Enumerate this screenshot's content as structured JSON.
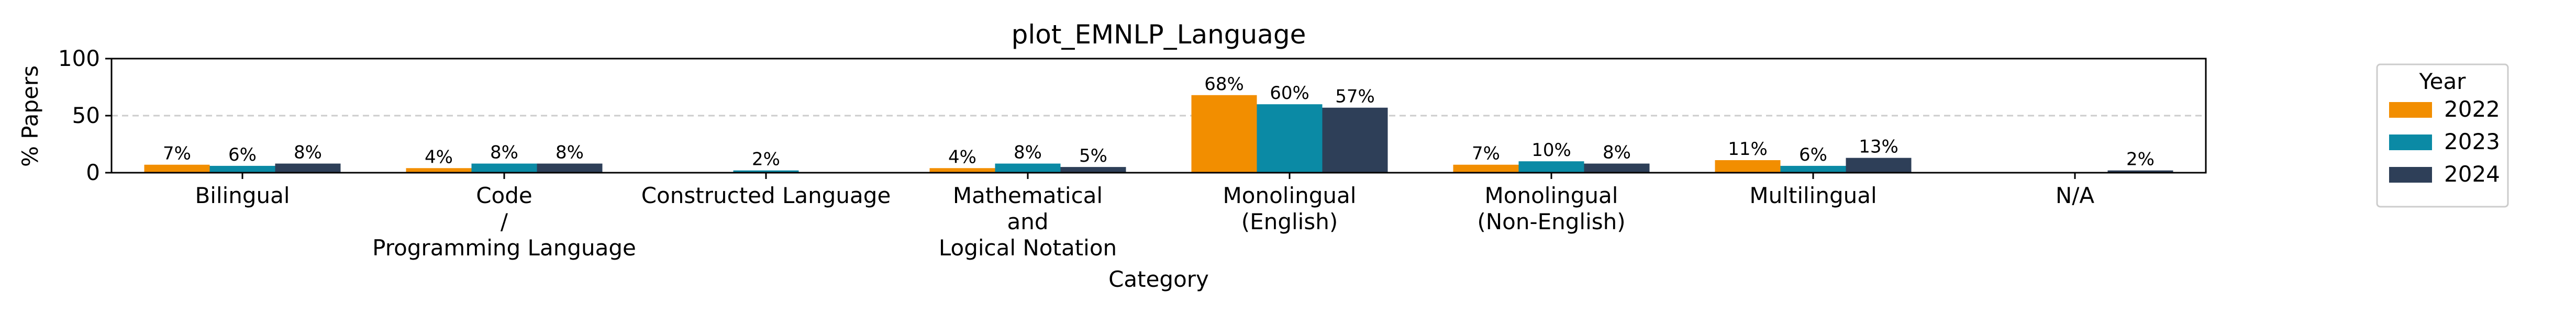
{
  "chart_data": {
    "type": "bar",
    "title": "plot_EMNLP_Language",
    "xlabel": "Category",
    "ylabel": "% Papers",
    "ylim": [
      0,
      100
    ],
    "yticks": [
      0,
      50,
      100
    ],
    "grid": "dashed y at 50",
    "legend": {
      "title": "Year",
      "placement": "right"
    },
    "categories": [
      "Bilingual",
      "Code\n/\nProgramming Language",
      "Constructed Language",
      "Mathematical\nand\nLogical Notation",
      "Monolingual\n(English)",
      "Monolingual\n(Non-English)",
      "Multilingual",
      "N/A"
    ],
    "series": [
      {
        "name": "2022",
        "color": "#f28e00",
        "values": [
          7,
          4,
          0,
          4,
          68,
          7,
          11,
          0
        ],
        "labels": [
          "7%",
          "4%",
          "",
          "4%",
          "68%",
          "7%",
          "11%",
          ""
        ]
      },
      {
        "name": "2023",
        "color": "#0b8aa5",
        "values": [
          6,
          8,
          2,
          8,
          60,
          10,
          6,
          0
        ],
        "labels": [
          "6%",
          "8%",
          "2%",
          "8%",
          "60%",
          "10%",
          "6%",
          ""
        ]
      },
      {
        "name": "2024",
        "color": "#2e3f58",
        "values": [
          8,
          8,
          0,
          5,
          57,
          8,
          13,
          2
        ],
        "labels": [
          "8%",
          "8%",
          "",
          "5%",
          "57%",
          "8%",
          "13%",
          "2%"
        ]
      }
    ]
  }
}
